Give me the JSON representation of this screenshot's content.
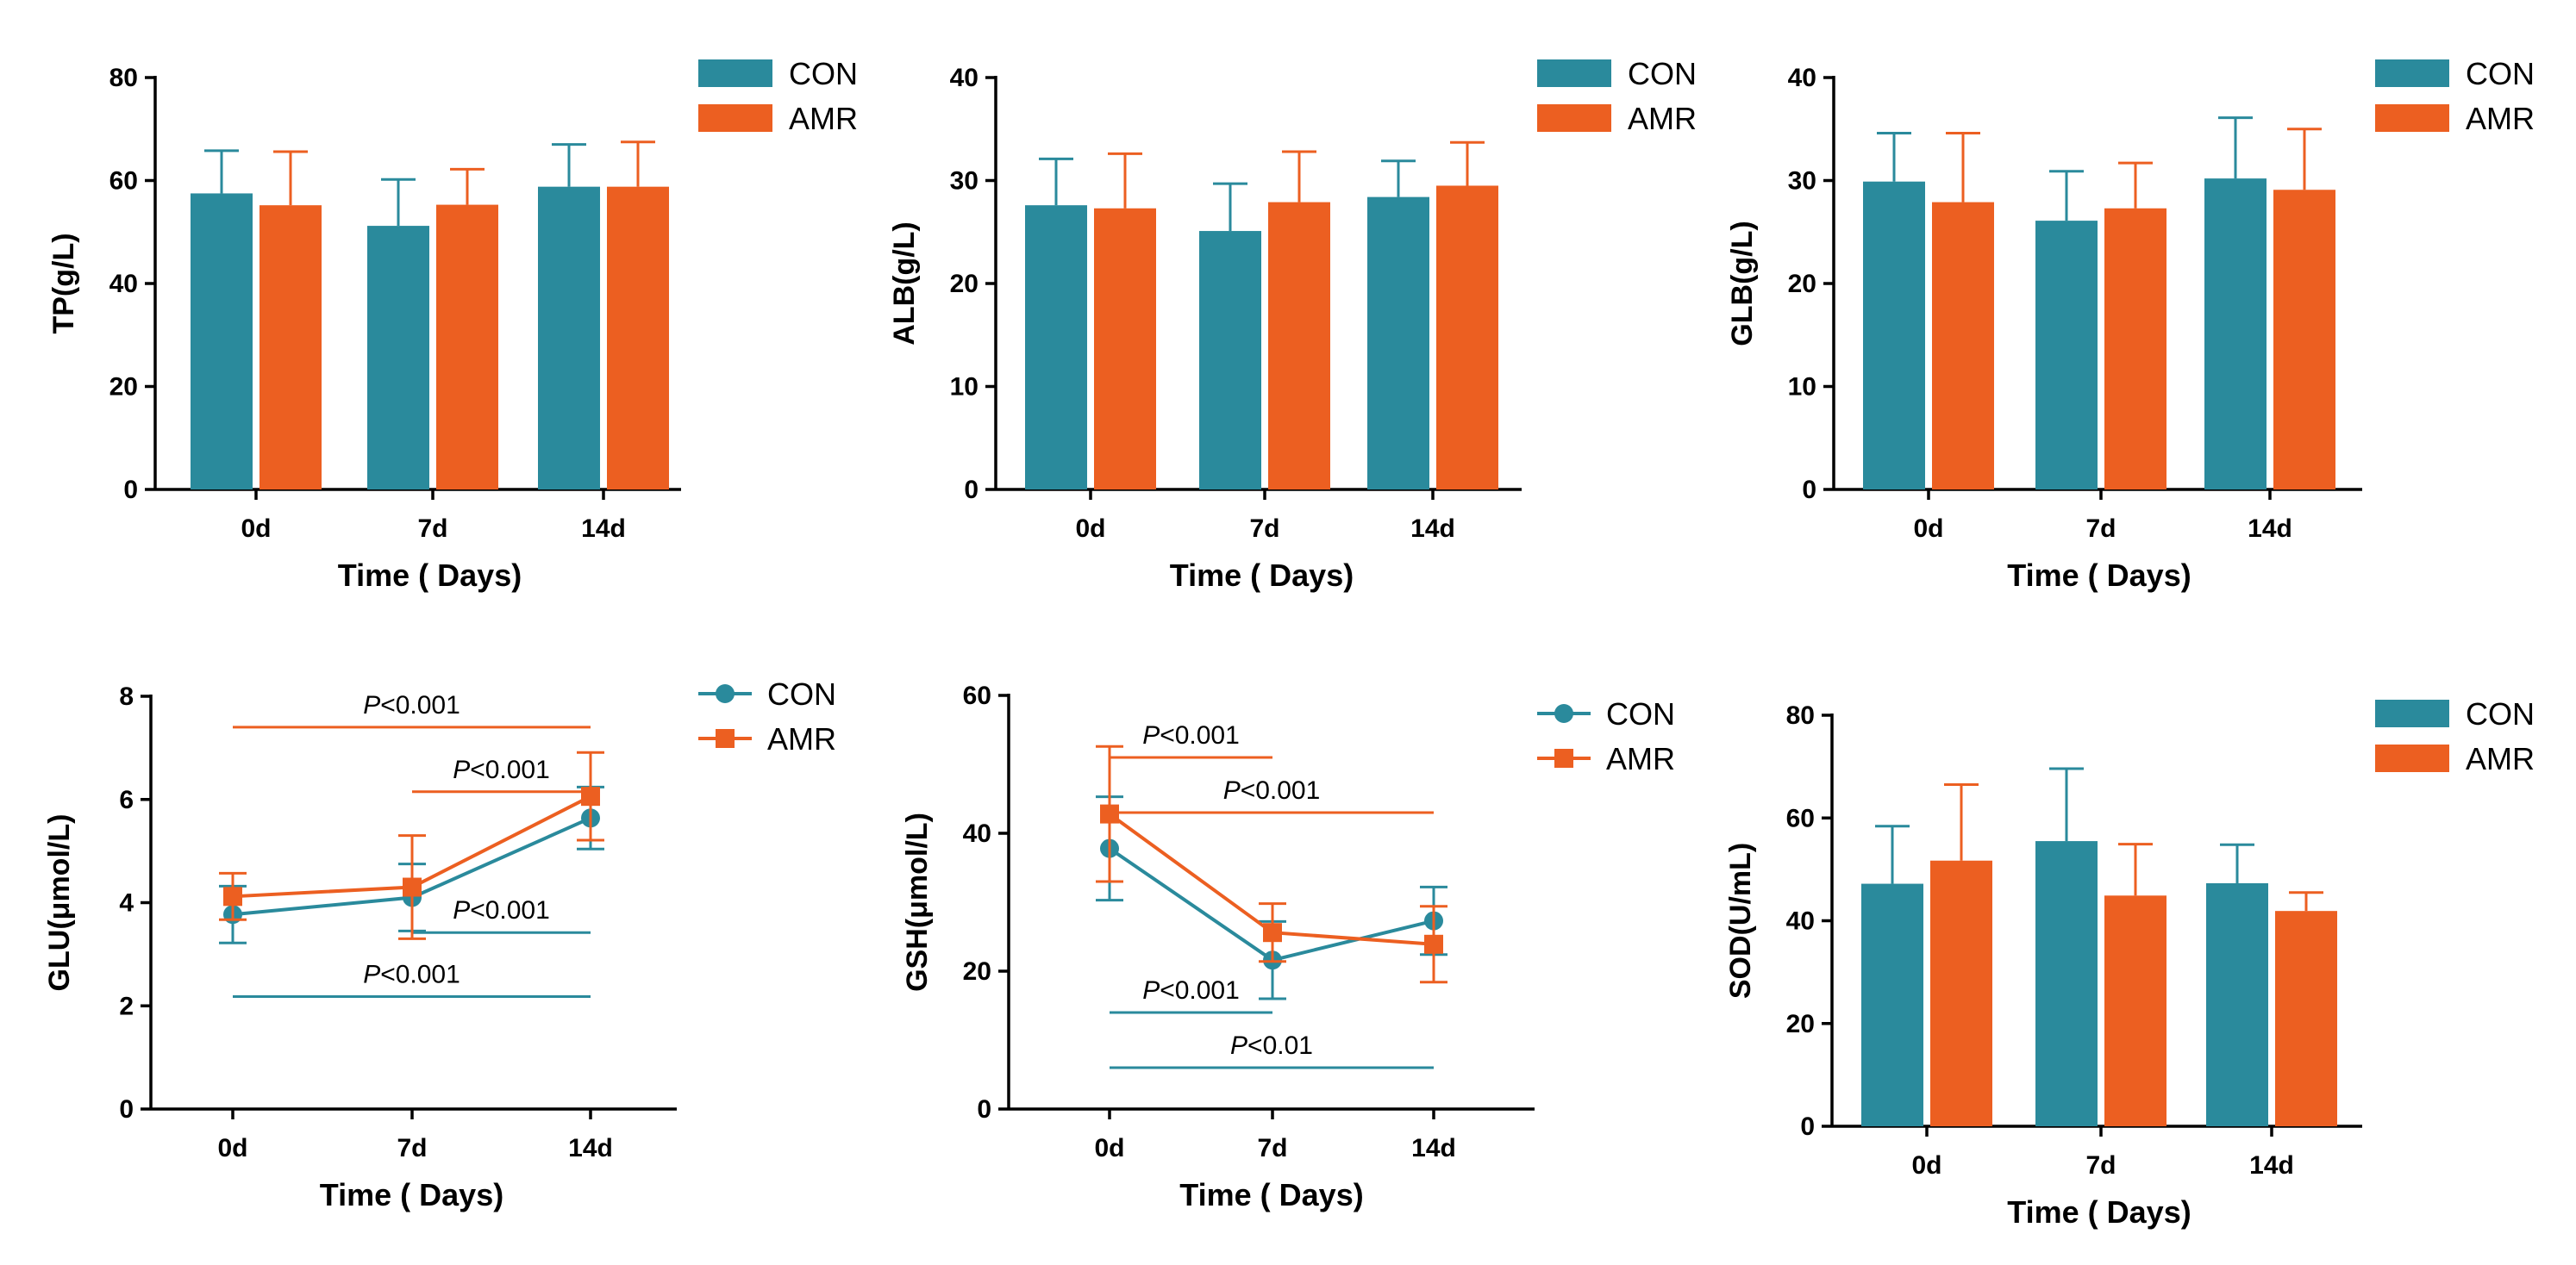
{
  "colors": {
    "con": "#2a8a9c",
    "amr": "#ec5f21",
    "axis": "#000000"
  },
  "legend": {
    "con": "CON",
    "amr": "AMR"
  },
  "chart_data": [
    {
      "id": "tp",
      "type": "bar",
      "title": "",
      "ylabel": "TP(g/L)",
      "xlabel": "Time ( Days)",
      "categories": [
        "0d",
        "7d",
        "14d"
      ],
      "ylim": [
        0,
        80
      ],
      "yticks": [
        "0",
        "20",
        "40",
        "60",
        "80"
      ],
      "series": [
        {
          "name": "CON",
          "values": [
            57.5,
            51.2,
            58.8
          ],
          "errors": [
            8.3,
            9.0,
            8.2
          ]
        },
        {
          "name": "AMR",
          "values": [
            55.2,
            55.3,
            58.8
          ],
          "errors": [
            10.4,
            6.9,
            8.7
          ]
        }
      ],
      "annotations": []
    },
    {
      "id": "alb",
      "type": "bar",
      "title": "",
      "ylabel": "ALB(g/L)",
      "xlabel": "Time ( Days)",
      "categories": [
        "0d",
        "7d",
        "14d"
      ],
      "ylim": [
        0,
        40
      ],
      "yticks": [
        "0",
        "10",
        "20",
        "30",
        "40"
      ],
      "series": [
        {
          "name": "CON",
          "values": [
            27.6,
            25.1,
            28.4
          ],
          "errors": [
            4.5,
            4.6,
            3.5
          ]
        },
        {
          "name": "AMR",
          "values": [
            27.3,
            27.9,
            29.5
          ],
          "errors": [
            5.3,
            4.9,
            4.2
          ]
        }
      ],
      "annotations": []
    },
    {
      "id": "glb",
      "type": "bar",
      "title": "",
      "ylabel": "GLB(g/L)",
      "xlabel": "Time ( Days)",
      "categories": [
        "0d",
        "7d",
        "14d"
      ],
      "ylim": [
        0,
        40
      ],
      "yticks": [
        "0",
        "10",
        "20",
        "30",
        "40"
      ],
      "series": [
        {
          "name": "CON",
          "values": [
            29.9,
            26.1,
            30.2
          ],
          "errors": [
            4.7,
            4.8,
            5.9
          ]
        },
        {
          "name": "AMR",
          "values": [
            27.9,
            27.3,
            29.1
          ],
          "errors": [
            6.7,
            4.4,
            5.9
          ]
        }
      ],
      "annotations": []
    },
    {
      "id": "glu",
      "type": "line",
      "title": "",
      "ylabel": "GLU(μmol/L)",
      "xlabel": "Time ( Days)",
      "categories": [
        "0d",
        "7d",
        "14d"
      ],
      "ylim": [
        0,
        8
      ],
      "yticks": [
        "0",
        "2",
        "4",
        "6",
        "8"
      ],
      "series": [
        {
          "name": "CON",
          "marker": "circle",
          "values": [
            3.77,
            4.1,
            5.64
          ],
          "errors": [
            0.55,
            0.65,
            0.6
          ]
        },
        {
          "name": "AMR",
          "marker": "square",
          "values": [
            4.12,
            4.3,
            6.06
          ],
          "errors": [
            0.45,
            1.0,
            0.85
          ]
        }
      ],
      "annotations": [
        {
          "series": "AMR",
          "from": "0d",
          "to": "14d",
          "y": 7.4,
          "text": "P<0.001"
        },
        {
          "series": "AMR",
          "from": "7d",
          "to": "14d",
          "y": 6.15,
          "text": "P<0.001"
        },
        {
          "series": "CON",
          "from": "7d",
          "to": "14d",
          "y": 3.42,
          "text": "P<0.001"
        },
        {
          "series": "CON",
          "from": "0d",
          "to": "14d",
          "y": 2.18,
          "text": "P<0.001"
        }
      ]
    },
    {
      "id": "gsh",
      "type": "line",
      "title": "",
      "ylabel": "GSH(μmol/L)",
      "xlabel": "Time (  Days)",
      "categories": [
        "0d",
        "7d",
        "14d"
      ],
      "ylim": [
        0,
        60
      ],
      "yticks": [
        "0",
        "20",
        "40",
        "60"
      ],
      "series": [
        {
          "name": "CON",
          "marker": "circle",
          "values": [
            37.8,
            21.6,
            27.3
          ],
          "errors": [
            7.5,
            5.6,
            4.9
          ]
        },
        {
          "name": "AMR",
          "marker": "square",
          "values": [
            42.8,
            25.6,
            23.9
          ],
          "errors": [
            9.8,
            4.2,
            5.5
          ]
        }
      ],
      "annotations": [
        {
          "series": "AMR",
          "from": "0d",
          "to": "7d",
          "y": 51.0,
          "text": "P<0.001"
        },
        {
          "series": "AMR",
          "from": "0d",
          "to": "14d",
          "y": 43.0,
          "text": "P<0.001"
        },
        {
          "series": "CON",
          "from": "0d",
          "to": "7d",
          "y": 14.0,
          "text": "P<0.001"
        },
        {
          "series": "CON",
          "from": "0d",
          "to": "14d",
          "y": 6.0,
          "text": "P<0.01"
        }
      ]
    },
    {
      "id": "sod",
      "type": "bar",
      "title": "",
      "ylabel": "SOD(U/mL)",
      "xlabel": "Time ( Days)",
      "categories": [
        "0d",
        "7d",
        "14d"
      ],
      "ylim": [
        0,
        80
      ],
      "yticks": [
        "0",
        "20",
        "40",
        "60",
        "80"
      ],
      "series": [
        {
          "name": "CON",
          "values": [
            47.2,
            55.5,
            47.3
          ],
          "errors": [
            11.2,
            14.1,
            7.5
          ]
        },
        {
          "name": "AMR",
          "values": [
            51.7,
            44.9,
            41.9
          ],
          "errors": [
            14.8,
            10.0,
            3.6
          ]
        }
      ],
      "annotations": []
    }
  ]
}
